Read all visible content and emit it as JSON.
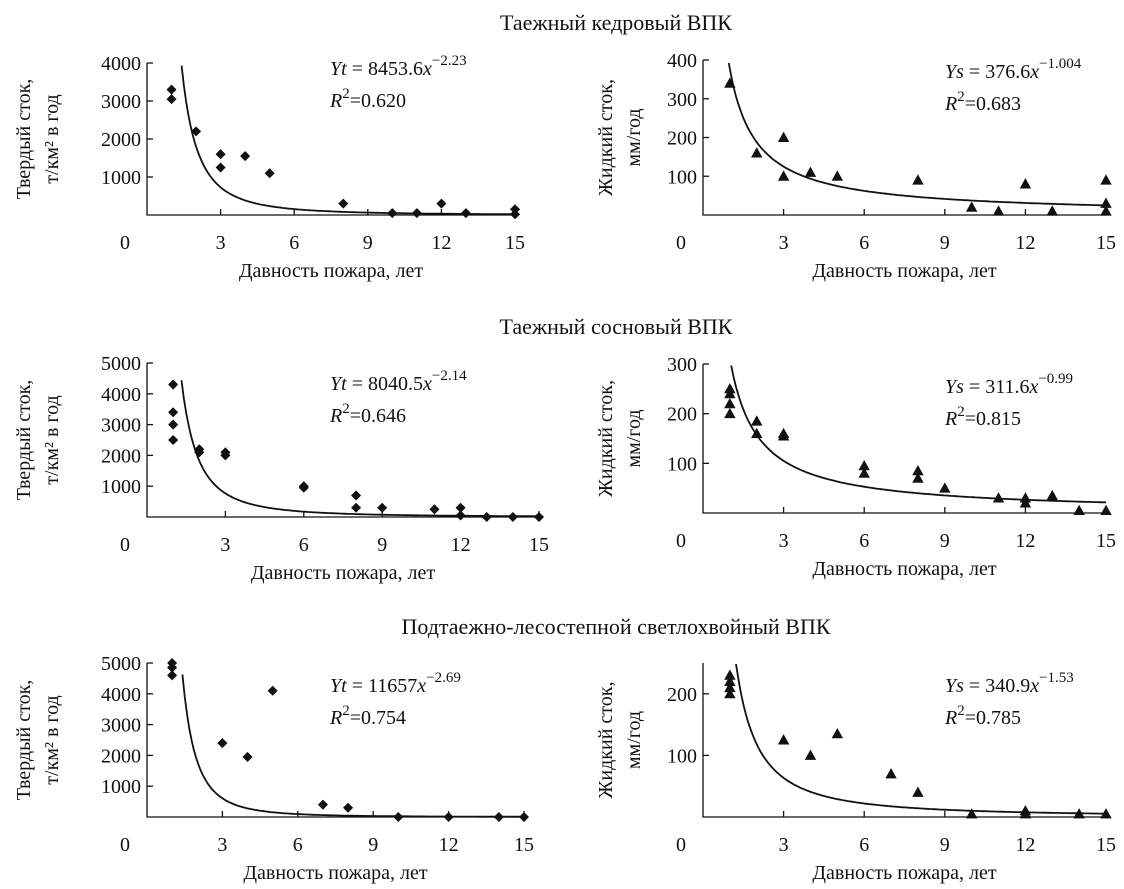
{
  "row_titles": [
    "Таежный кедровый ВПК",
    "Таежный сосновый ВПК",
    "Подтаежно-лесостепной светлохвойный ВПК"
  ],
  "chart_data": [
    {
      "type": "scatter",
      "row_title": "Таежный кедровый ВПК",
      "xlabel": "Давность пожара, лет",
      "ylabel_lines": [
        "Твердый сток,",
        "т/км² в год"
      ],
      "xlim": [
        0,
        15
      ],
      "ylim": [
        0,
        4000
      ],
      "xticks": [
        0,
        3,
        6,
        9,
        12,
        15
      ],
      "yticks": [
        1000,
        2000,
        3000,
        4000
      ],
      "marker": "diamond",
      "eq_var": "Yt",
      "eq_coef": "8453.6",
      "eq_exp": "−2.23",
      "r2": "0.620",
      "fit": {
        "a": 8453.6,
        "b": -2.23
      },
      "points": [
        [
          1,
          3300
        ],
        [
          1,
          3050
        ],
        [
          2,
          2200
        ],
        [
          3,
          1600
        ],
        [
          3,
          1250
        ],
        [
          4,
          1550
        ],
        [
          5,
          1100
        ],
        [
          8,
          300
        ],
        [
          10,
          50
        ],
        [
          11,
          50
        ],
        [
          12,
          300
        ],
        [
          13,
          50
        ],
        [
          15,
          150
        ],
        [
          15,
          20
        ]
      ]
    },
    {
      "type": "scatter",
      "row_title": "Таежный кедровый ВПК",
      "xlabel": "Давность пожара, лет",
      "ylabel_lines": [
        "Жидкий сток,",
        "мм/год"
      ],
      "xlim": [
        0,
        15
      ],
      "ylim": [
        0,
        400
      ],
      "xticks": [
        0,
        3,
        6,
        9,
        12,
        15
      ],
      "yticks": [
        100,
        200,
        300,
        400
      ],
      "marker": "triangle",
      "eq_var": "Ys",
      "eq_coef": "376.6",
      "eq_exp": "−1.004",
      "r2": "0.683",
      "fit": {
        "a": 376.6,
        "b": -1.004
      },
      "points": [
        [
          1,
          340
        ],
        [
          2,
          160
        ],
        [
          3,
          200
        ],
        [
          3,
          100
        ],
        [
          4,
          110
        ],
        [
          5,
          100
        ],
        [
          8,
          90
        ],
        [
          10,
          20
        ],
        [
          11,
          10
        ],
        [
          12,
          80
        ],
        [
          13,
          10
        ],
        [
          15,
          90
        ],
        [
          15,
          30
        ],
        [
          15,
          10
        ]
      ]
    },
    {
      "type": "scatter",
      "row_title": "Таежный сосновый ВПК",
      "xlabel": "Давность пожара, лет",
      "ylabel_lines": [
        "Твердый сток,",
        "т/км² в год"
      ],
      "xlim": [
        0,
        15
      ],
      "ylim": [
        0,
        5000
      ],
      "xticks": [
        0,
        3,
        6,
        9,
        12,
        15
      ],
      "yticks": [
        1000,
        2000,
        3000,
        4000,
        5000
      ],
      "marker": "diamond",
      "eq_var": "Yt",
      "eq_coef": "8040.5",
      "eq_exp": "−2.14",
      "r2": "0.646",
      "fit": {
        "a": 8040.5,
        "b": -2.14
      },
      "points": [
        [
          1,
          4300
        ],
        [
          1,
          3400
        ],
        [
          1,
          3000
        ],
        [
          1,
          2500
        ],
        [
          2,
          2200
        ],
        [
          2,
          2100
        ],
        [
          3,
          2100
        ],
        [
          3,
          2000
        ],
        [
          6,
          1000
        ],
        [
          6,
          950
        ],
        [
          8,
          700
        ],
        [
          8,
          300
        ],
        [
          9,
          300
        ],
        [
          11,
          250
        ],
        [
          12,
          300
        ],
        [
          12,
          50
        ],
        [
          13,
          0
        ],
        [
          14,
          0
        ],
        [
          15,
          0
        ]
      ]
    },
    {
      "type": "scatter",
      "row_title": "Таежный сосновый ВПК",
      "xlabel": "Давность пожара, лет",
      "ylabel_lines": [
        "Жидкий сток,",
        "мм/год"
      ],
      "xlim": [
        0,
        15
      ],
      "ylim": [
        0,
        300
      ],
      "xticks": [
        0,
        3,
        6,
        9,
        12,
        15
      ],
      "yticks": [
        100,
        200,
        300
      ],
      "marker": "triangle",
      "eq_var": "Ys",
      "eq_coef": "311.6",
      "eq_exp": "−0.99",
      "r2": "0.815",
      "fit": {
        "a": 311.6,
        "b": -0.99
      },
      "points": [
        [
          1,
          250
        ],
        [
          1,
          240
        ],
        [
          1,
          220
        ],
        [
          1,
          200
        ],
        [
          2,
          185
        ],
        [
          2,
          160
        ],
        [
          3,
          160
        ],
        [
          3,
          155
        ],
        [
          6,
          95
        ],
        [
          6,
          80
        ],
        [
          8,
          85
        ],
        [
          8,
          70
        ],
        [
          9,
          50
        ],
        [
          11,
          30
        ],
        [
          12,
          30
        ],
        [
          12,
          20
        ],
        [
          13,
          35
        ],
        [
          14,
          5
        ],
        [
          15,
          5
        ]
      ]
    },
    {
      "type": "scatter",
      "row_title": "Подтаежно-лесостепной светлохвойный ВПК",
      "xlabel": "Давность пожара, лет",
      "ylabel_lines": [
        "Твердый сток,",
        "т/км² в год"
      ],
      "xlim": [
        0,
        15
      ],
      "ylim": [
        0,
        5000
      ],
      "xticks": [
        0,
        3,
        6,
        9,
        12,
        15
      ],
      "yticks": [
        1000,
        2000,
        3000,
        4000,
        5000
      ],
      "marker": "diamond",
      "eq_var": "Yt",
      "eq_coef": "11657",
      "eq_exp": "−2.69",
      "r2": "0.754",
      "fit": {
        "a": 11657,
        "b": -2.69
      },
      "points": [
        [
          1,
          5000
        ],
        [
          1,
          4850
        ],
        [
          1,
          4600
        ],
        [
          3,
          2400
        ],
        [
          4,
          1950
        ],
        [
          5,
          4100
        ],
        [
          7,
          400
        ],
        [
          8,
          300
        ],
        [
          10,
          0
        ],
        [
          12,
          0
        ],
        [
          14,
          0
        ],
        [
          15,
          0
        ]
      ]
    },
    {
      "type": "scatter",
      "row_title": "Подтаежно-лесостепной светлохвойный ВПК",
      "xlabel": "Давность пожара, лет",
      "ylabel_lines": [
        "Жидкий сток,",
        "мм/год"
      ],
      "xlim": [
        0,
        15
      ],
      "ylim": [
        0,
        250
      ],
      "xticks": [
        0,
        3,
        6,
        9,
        12,
        15
      ],
      "yticks": [
        100,
        200
      ],
      "marker": "triangle",
      "eq_var": "Ys",
      "eq_coef": "340.9",
      "eq_exp": "−1.53",
      "r2": "0.785",
      "fit": {
        "a": 340.9,
        "b": -1.53
      },
      "points": [
        [
          1,
          230
        ],
        [
          1,
          220
        ],
        [
          1,
          210
        ],
        [
          1,
          200
        ],
        [
          3,
          125
        ],
        [
          4,
          100
        ],
        [
          5,
          135
        ],
        [
          7,
          70
        ],
        [
          8,
          40
        ],
        [
          10,
          5
        ],
        [
          12,
          10
        ],
        [
          12,
          5
        ],
        [
          14,
          5
        ],
        [
          15,
          5
        ]
      ]
    }
  ]
}
